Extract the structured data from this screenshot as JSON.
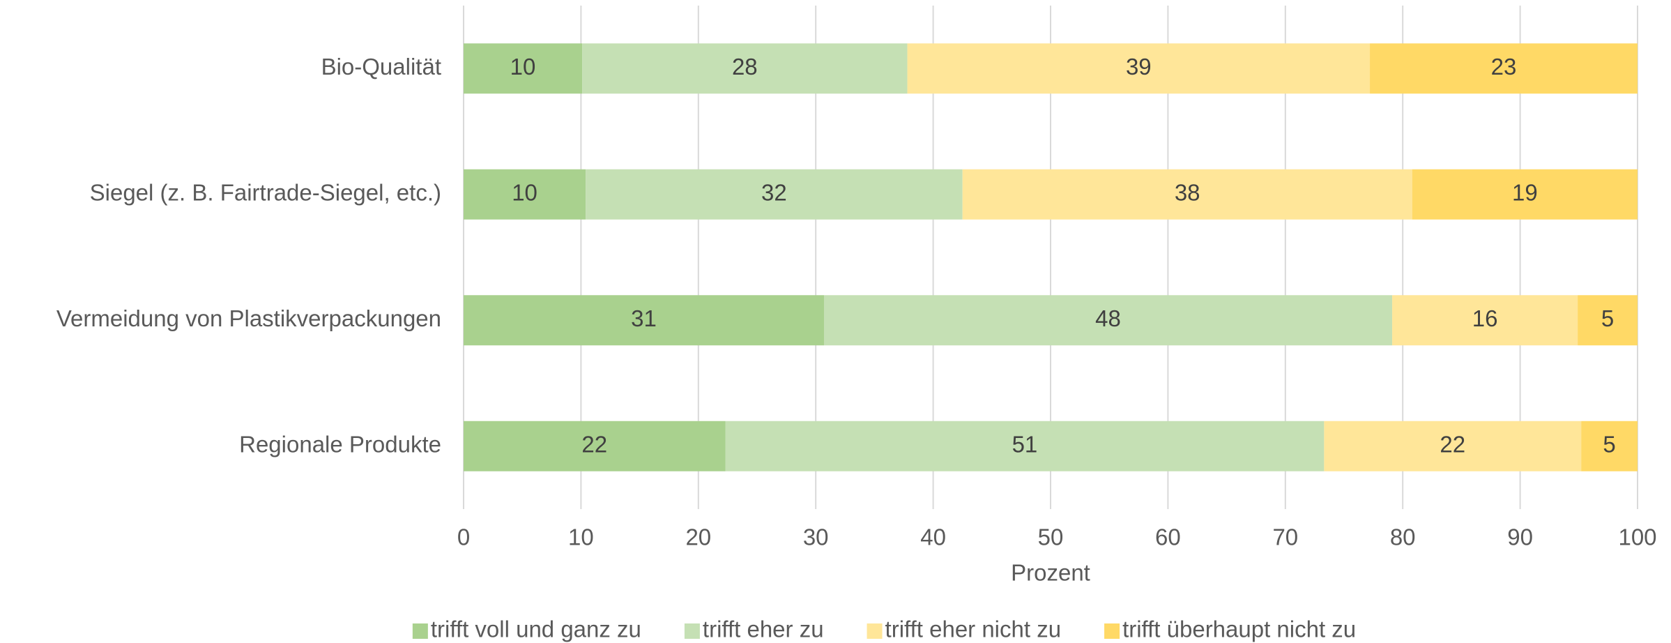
{
  "chart_data": {
    "type": "stacked-bar-horizontal",
    "categories": [
      "Bio-Qualität",
      "Siegel (z. B. Fairtrade-Siegel, etc.)",
      "Vermeidung von Plastikverpackungen",
      "Regionale Produkte"
    ],
    "series": [
      {
        "name": "trifft voll und ganz zu",
        "color": "#a9d18e",
        "values": [
          10.1,
          10.4,
          30.7,
          22.3
        ],
        "value_labels": [
          "10",
          "10",
          "31",
          "22"
        ]
      },
      {
        "name": "trifft eher zu",
        "color": "#c5e0b4",
        "values": [
          27.7,
          32.1,
          48.4,
          51.0
        ],
        "value_labels": [
          "28",
          "32",
          "48",
          "51"
        ]
      },
      {
        "name": "trifft eher nicht zu",
        "color": "#ffe699",
        "values": [
          39.4,
          38.3,
          15.8,
          21.9
        ],
        "value_labels": [
          "39",
          "38",
          "16",
          "22"
        ]
      },
      {
        "name": "trifft überhaupt nicht zu",
        "color": "#ffd966",
        "values": [
          22.8,
          19.2,
          5.1,
          4.8
        ],
        "value_labels": [
          "23",
          "19",
          "5",
          "5"
        ]
      }
    ],
    "xlabel": "Prozent",
    "xlim": [
      0,
      100
    ],
    "xticks": [
      0,
      10,
      20,
      30,
      40,
      50,
      60,
      70,
      80,
      90,
      100
    ],
    "grid": true,
    "legend": "bottom"
  }
}
